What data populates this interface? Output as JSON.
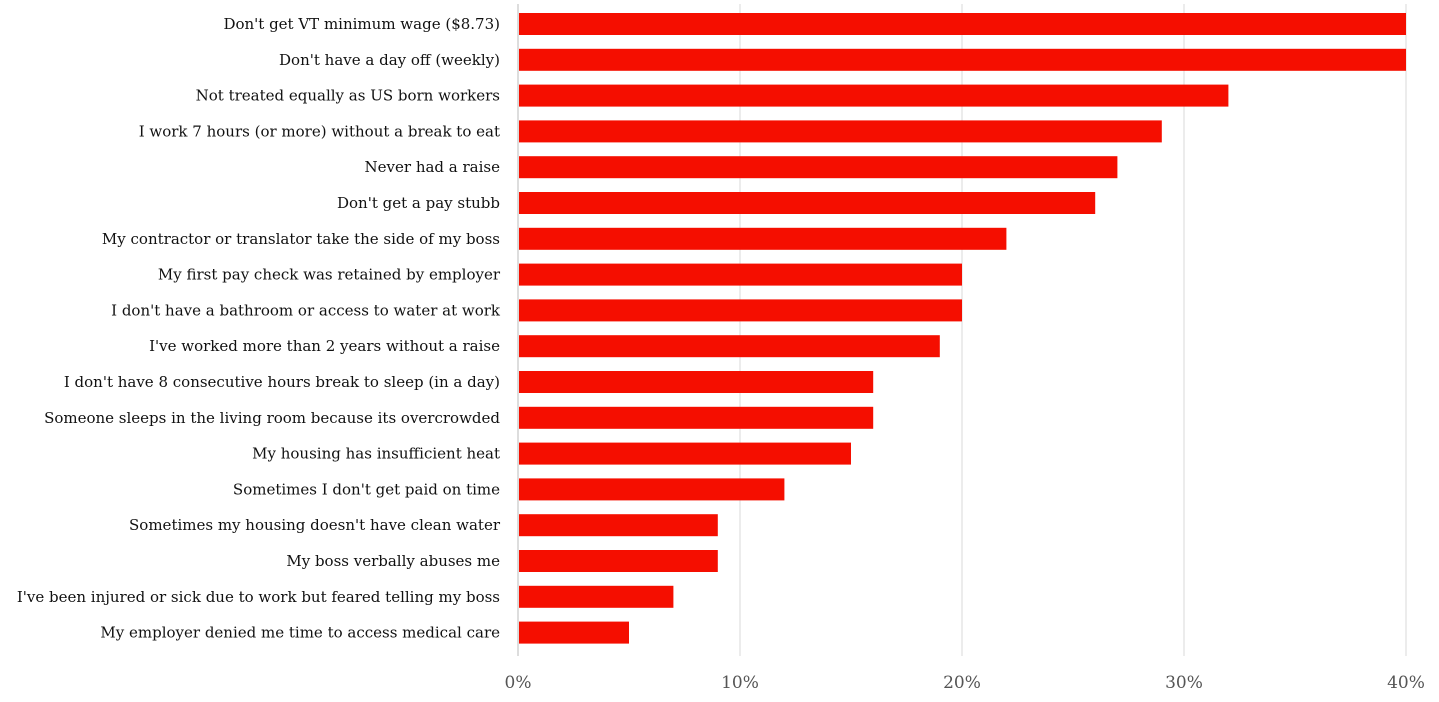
{
  "chart_data": {
    "type": "bar",
    "orientation": "horizontal",
    "categories": [
      "Don't get VT minimum wage ($8.73)",
      "Don't have a day off (weekly)",
      "Not treated equally as US born workers",
      "I work 7 hours (or more) without a break to eat",
      "Never had a raise",
      "Don't get a pay stubb",
      "My contractor or translator take the side of my boss",
      "My first pay check was retained by employer",
      "I don't have a bathroom or access to water at work",
      "I've worked more than 2 years without a raise",
      "I don't have 8 consecutive hours break to sleep (in a day)",
      "Someone sleeps in the living room because its overcrowded",
      "My housing has insufficient heat",
      "Sometimes I don't get paid on time",
      "Sometimes my housing doesn't have clean water",
      "My boss verbally abuses me",
      "I've been injured or sick due to work but feared telling my boss",
      "My employer denied me time to access medical care"
    ],
    "values": [
      40,
      40,
      32,
      29,
      27,
      26,
      22,
      20,
      20,
      19,
      16,
      16,
      15,
      12,
      9,
      9,
      7,
      5
    ],
    "xlim": [
      0,
      40
    ],
    "ticks": [
      "0%",
      "10%",
      "20%",
      "30%",
      "40%"
    ],
    "grid": "vertical",
    "bar_color": "#f50e00",
    "grid_color": "#d9d9d9"
  }
}
